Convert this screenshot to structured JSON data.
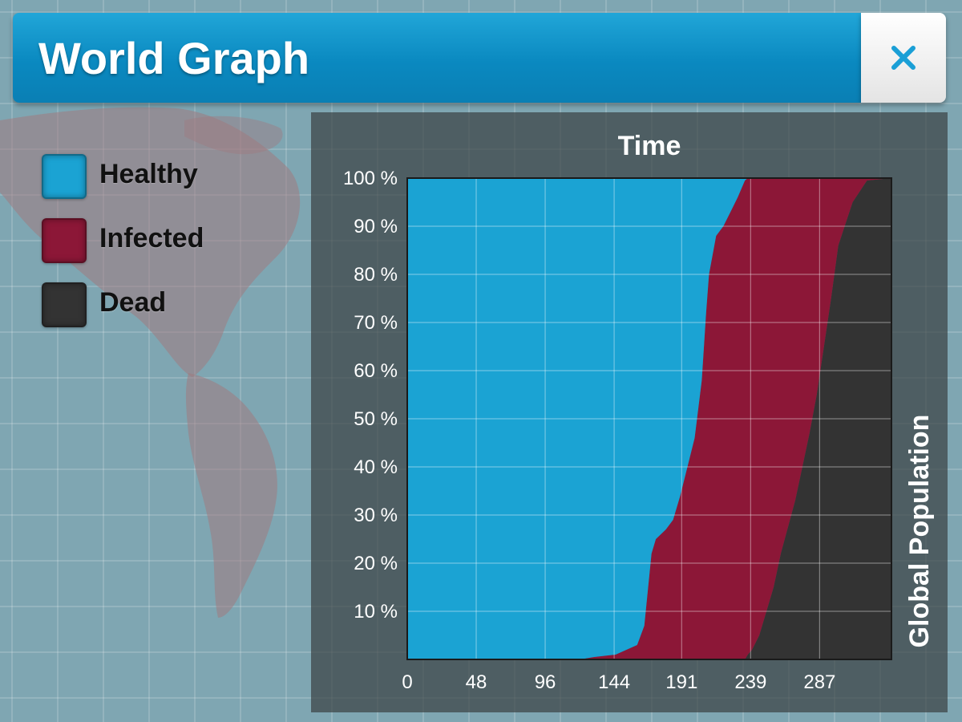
{
  "window": {
    "title": "World Graph",
    "close_icon": "close-icon"
  },
  "colors": {
    "healthy": "#1ba3d3",
    "infected": "#8c1737",
    "dead": "#333333",
    "title_bar": "#0a89c0",
    "close_icon": "#1a9fd6"
  },
  "legend": {
    "items": [
      {
        "label": "Healthy",
        "color": "#1ba3d3"
      },
      {
        "label": "Infected",
        "color": "#8c1737"
      },
      {
        "label": "Dead",
        "color": "#333333"
      }
    ]
  },
  "chart_data": {
    "type": "area",
    "stacked": true,
    "title": "Time",
    "xlabel": "",
    "ylabel": "Global Population",
    "xlim": [
      0,
      337
    ],
    "ylim": [
      0,
      100
    ],
    "x_ticks": [
      "0",
      "48",
      "96",
      "144",
      "191",
      "239",
      "287"
    ],
    "y_ticks": [
      "10 %",
      "20 %",
      "30 %",
      "40 %",
      "50 %",
      "60 %",
      "70 %",
      "80 %",
      "90 %",
      "100 %"
    ],
    "grid": true,
    "x": [
      0,
      120,
      130,
      145,
      160,
      165,
      170,
      173,
      180,
      185,
      190,
      195,
      200,
      205,
      208,
      210,
      215,
      220,
      225,
      230,
      235,
      237,
      240,
      245,
      250,
      255,
      260,
      270,
      275,
      280,
      285,
      290,
      295,
      300,
      310,
      320,
      337
    ],
    "series": [
      {
        "name": "Healthy",
        "color": "#1ba3d3",
        "values": [
          100,
          100,
          99.5,
          99,
          97,
          93,
          78,
          75,
          73,
          71,
          66,
          60,
          54,
          42,
          28,
          20,
          12,
          10,
          7,
          4,
          0.5,
          0,
          0,
          0,
          0,
          0,
          0,
          0,
          0,
          0,
          0,
          0,
          0,
          0,
          0,
          0,
          0
        ]
      },
      {
        "name": "Infected",
        "color": "#8c1737",
        "values": [
          0,
          0,
          0.5,
          1,
          3,
          7,
          22,
          25,
          27,
          29,
          34,
          40,
          46,
          58,
          72,
          80,
          88,
          90,
          93,
          96,
          99.5,
          99,
          98,
          95,
          90,
          85,
          78,
          67,
          60,
          53,
          45,
          35,
          25,
          14,
          5,
          0.5,
          0
        ]
      },
      {
        "name": "Dead",
        "color": "#333333",
        "values": [
          0,
          0,
          0,
          0,
          0,
          0,
          0,
          0,
          0,
          0,
          0,
          0,
          0,
          0,
          0,
          0,
          0,
          0,
          0,
          0,
          0,
          1,
          2,
          5,
          10,
          15,
          22,
          33,
          40,
          47,
          55,
          65,
          75,
          86,
          95,
          99.5,
          100
        ]
      }
    ]
  }
}
